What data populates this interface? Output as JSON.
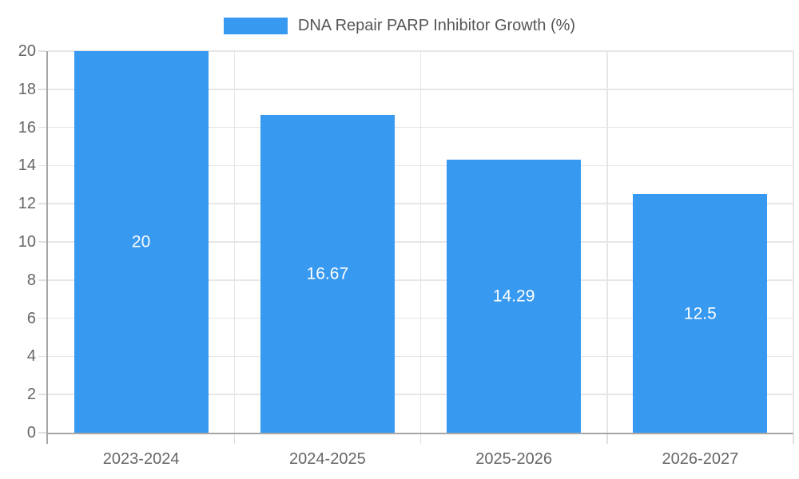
{
  "legend": {
    "label": "DNA Repair PARP Inhibitor Growth (%)"
  },
  "chart_data": {
    "type": "bar",
    "title": "DNA Repair PARP Inhibitor Growth (%)",
    "categories": [
      "2023-2024",
      "2024-2025",
      "2025-2026",
      "2026-2027"
    ],
    "values": [
      20,
      16.67,
      14.29,
      12.5
    ],
    "value_labels": [
      "20",
      "16.67",
      "14.29",
      "12.5"
    ],
    "ylabel": "",
    "xlabel": "",
    "ylim": [
      0,
      20
    ],
    "ytick_step": 2,
    "ytick_labels": [
      "0",
      "2",
      "4",
      "6",
      "8",
      "10",
      "12",
      "14",
      "16",
      "18",
      "20"
    ],
    "grid": true,
    "legend_position": "top",
    "bar_width_fraction": 0.72,
    "colors": {
      "bar": "#3899f0",
      "value_label": "#ffffff",
      "axis_label": "#666666",
      "legend_text": "#555555",
      "gridline": "#e6e6e6",
      "tick": "#e0e0e0",
      "axis_line": "#a6a6a6",
      "background": "#ffffff"
    }
  }
}
